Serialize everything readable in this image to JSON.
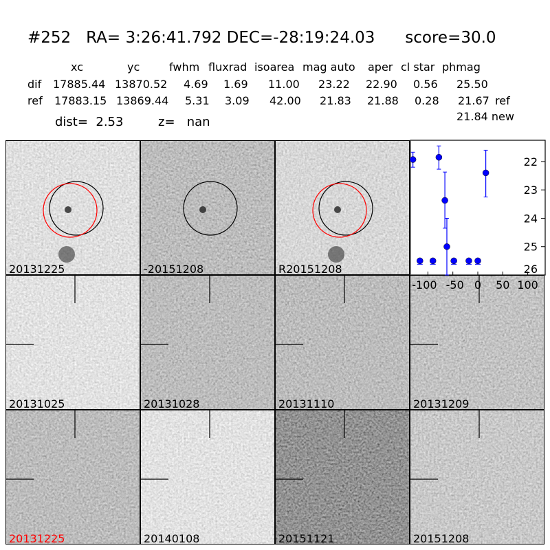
{
  "title": "#252   RA= 3:26:41.792 DEC=-28:19:24.03      score=30.0",
  "table": {
    "headers": [
      "xc",
      "yc",
      "fwhm",
      "fluxrad",
      "isoarea",
      "mag auto",
      "aper",
      "cl star",
      "phmag"
    ],
    "rows": [
      {
        "label": "dif",
        "values": [
          "17885.44",
          "13870.52",
          "4.69",
          "1.69",
          "11.00",
          "23.22",
          "22.90",
          "0.56",
          "25.50"
        ],
        "suffix": ""
      },
      {
        "label": "ref",
        "values": [
          "17883.15",
          "13869.44",
          "5.31",
          "3.09",
          "42.00",
          "21.83",
          "21.88",
          "0.28",
          "21.67"
        ],
        "suffix": "ref"
      }
    ],
    "new_phmag": "21.84 new",
    "dist": "dist=  2.53",
    "z": "z=   nan"
  },
  "panels": [
    {
      "label": "20131225",
      "tone": 190,
      "color": "#000000"
    },
    {
      "label": "-20151208",
      "tone": 130,
      "color": "#000000"
    },
    {
      "label": "R20151208",
      "tone": 175,
      "color": "#000000"
    },
    {
      "label": "20131025",
      "tone": 195,
      "color": "#000000"
    },
    {
      "label": "20131028",
      "tone": 130,
      "color": "#000000"
    },
    {
      "label": "20131110",
      "tone": 130,
      "color": "#000000"
    },
    {
      "label": "20131209",
      "tone": 140,
      "color": "#000000"
    },
    {
      "label": "20131225",
      "tone": 130,
      "color": "#ff0000"
    },
    {
      "label": "20140108",
      "tone": 195,
      "color": "#000000"
    },
    {
      "label": "20151121",
      "tone": 75,
      "color": "#000000"
    },
    {
      "label": "20151208",
      "tone": 150,
      "color": "#000000"
    }
  ],
  "chart_data": {
    "type": "scatter",
    "marker_color": "#0000ff",
    "xlim": [
      -135,
      135
    ],
    "ylim": [
      26,
      21.25
    ],
    "y_inverted": true,
    "xticks": [
      "-100",
      "-50",
      "0",
      "50",
      "100"
    ],
    "yticks": [
      "22",
      "23",
      "24",
      "25",
      "26"
    ],
    "points": [
      {
        "x": -130,
        "y": 21.93,
        "err": [
          21.67,
          22.2
        ]
      },
      {
        "x": -116,
        "y": 25.5,
        "err": null
      },
      {
        "x": -90,
        "y": 25.5,
        "err": null
      },
      {
        "x": -78,
        "y": 21.85,
        "err": [
          21.45,
          22.27
        ]
      },
      {
        "x": -66,
        "y": 23.37,
        "err": [
          22.37,
          24.35
        ]
      },
      {
        "x": -62,
        "y": 25.0,
        "err": [
          24.0,
          26.0
        ]
      },
      {
        "x": -48,
        "y": 25.5,
        "err": null
      },
      {
        "x": -18,
        "y": 25.5,
        "err": null
      },
      {
        "x": 0,
        "y": 25.5,
        "err": null
      },
      {
        "x": 16,
        "y": 22.4,
        "err": [
          21.6,
          23.25
        ]
      }
    ]
  }
}
